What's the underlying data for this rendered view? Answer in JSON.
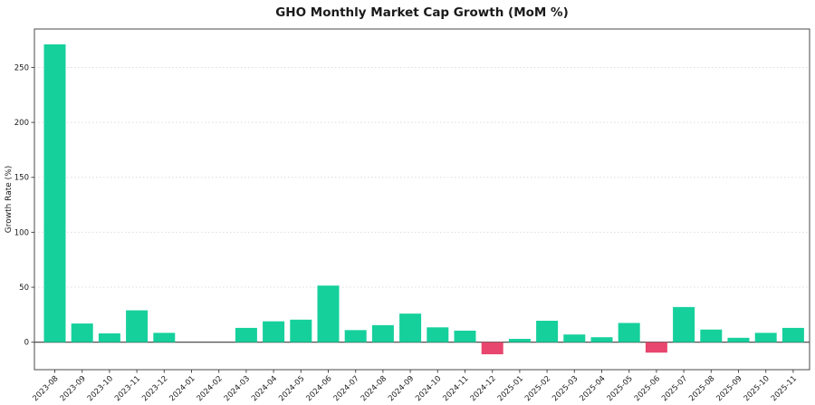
{
  "chart_data": {
    "type": "bar",
    "title": "GHO Monthly Market Cap Growth (MoM %)",
    "xlabel": "",
    "ylabel": "Growth Rate (%)",
    "categories": [
      "2023-08",
      "2023-09",
      "2023-10",
      "2023-11",
      "2023-12",
      "2024-01",
      "2024-02",
      "2024-03",
      "2024-04",
      "2024-05",
      "2024-06",
      "2024-07",
      "2024-08",
      "2024-09",
      "2024-10",
      "2024-11",
      "2024-12",
      "2025-01",
      "2025-02",
      "2025-03",
      "2025-04",
      "2025-05",
      "2025-06",
      "2025-07",
      "2025-08",
      "2025-09",
      "2025-10",
      "2025-11"
    ],
    "values": [
      271,
      17,
      8,
      29,
      8.5,
      0,
      0,
      13,
      19,
      20.5,
      51.5,
      11,
      15.5,
      26,
      13.5,
      10.5,
      -11,
      3,
      19.5,
      7,
      4.5,
      17.5,
      -9.5,
      32,
      11.5,
      4,
      8.5,
      13
    ],
    "yticks": [
      0,
      50,
      100,
      150,
      200,
      250
    ],
    "ylim": [
      -25,
      285
    ],
    "grid": "horizontal-dashed",
    "legend": "none",
    "colors": {
      "positive_bar": "#16d09c",
      "negative_bar": "#e8466e",
      "zero_line": "#3a3a3a",
      "gridline": "#dcdcdc",
      "spine": "#4a4a4a",
      "tick_text": "#1a1a1a",
      "background": "#ffffff"
    }
  }
}
